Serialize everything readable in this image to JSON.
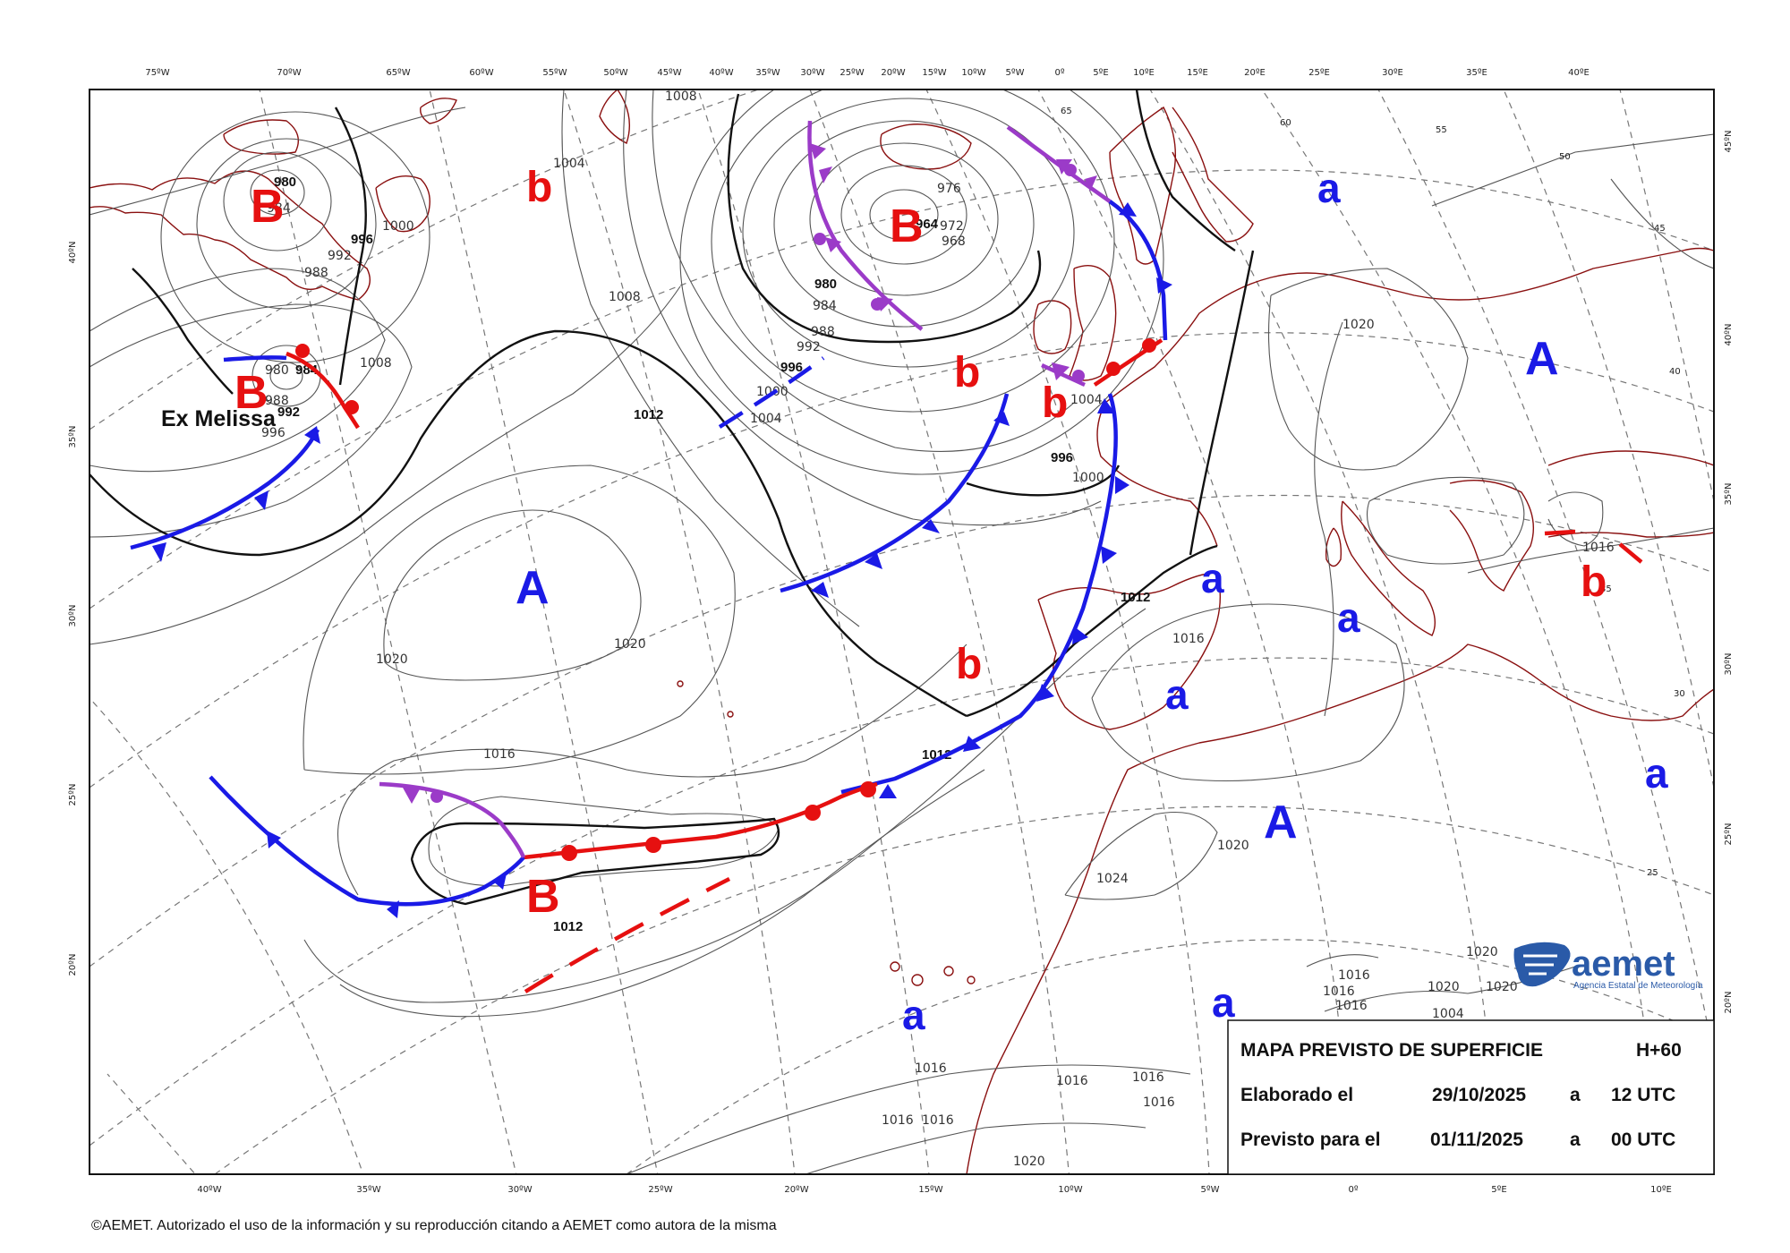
{
  "top_lon_labels": [
    "75ºW",
    "70ºW",
    "65ºW",
    "60ºW",
    "55ºW",
    "50ºW",
    "45ºW",
    "40ºW",
    "35ºW",
    "30ºW",
    "25ºW",
    "20ºW",
    "15ºW",
    "10ºW",
    "5ºW",
    "0º",
    "5ºE",
    "10ºE",
    "15ºE",
    "20ºE",
    "25ºE",
    "30ºE",
    "35ºE",
    "40ºE"
  ],
  "bottom_lon_labels": [
    "40ºW",
    "35ºW",
    "30ºW",
    "25ºW",
    "20ºW",
    "15ºW",
    "10ºW",
    "5ºW",
    "0º",
    "5ºE",
    "10ºE"
  ],
  "left_lat_labels": [
    "40ºN",
    "35ºN",
    "30ºN",
    "25ºN",
    "20ºN"
  ],
  "right_lat_labels": [
    "45ºN",
    "40ºN",
    "35ºN",
    "30ºN",
    "25ºN",
    "20ºN"
  ],
  "inner_grid_labels": [
    "55",
    "50",
    "45",
    "40",
    "35",
    "30",
    "25",
    "65",
    "60"
  ],
  "isobar_labels": [
    "1008",
    "1004",
    "980",
    "984",
    "988",
    "992",
    "996",
    "976",
    "972",
    "968",
    "964",
    "980",
    "984",
    "988",
    "992",
    "996",
    "1000",
    "1004",
    "1008",
    "1012",
    "1016",
    "1020",
    "1024",
    "1020",
    "1020",
    "1020",
    "1016",
    "1016",
    "1016",
    "1016",
    "1016",
    "1016",
    "1016",
    "1016",
    "1016",
    "1016",
    "1020",
    "1020",
    "1020",
    "1020",
    "1004",
    "1008",
    "1000",
    "996",
    "992",
    "988",
    "980",
    "984",
    "996",
    "1012",
    "1012",
    "1012",
    "1004",
    "1000",
    "1016"
  ],
  "pressure_systems": {
    "high_symbol": "A",
    "low_symbol": "B",
    "relative_high_symbol": "a",
    "relative_low_symbol": "b"
  },
  "storm_label": "Ex Melissa",
  "info_box": {
    "title": "MAPA PREVISTO DE SUPERFICIE",
    "lead_time": "H+60",
    "row1_label": "Elaborado el",
    "row1_date": "29/10/2025",
    "row1_a": "a",
    "row1_time": "12 UTC",
    "row2_label": "Previsto para el",
    "row2_date": "01/11/2025",
    "row2_a": "a",
    "row2_time": "00 UTC"
  },
  "logo": {
    "name": "aemet",
    "subtitle": "Agencia Estatal de Meteorología"
  },
  "copyright": "©AEMET. Autorizado el uso de la información y su reproducción citando a AEMET como autora de la misma",
  "colors": {
    "cold_front": "#1a1ae6",
    "warm_front": "#e61010",
    "occluded_front": "#9b3bc8",
    "coastline": "#8a1010",
    "high": "#1a1ae6",
    "low": "#e61010"
  }
}
